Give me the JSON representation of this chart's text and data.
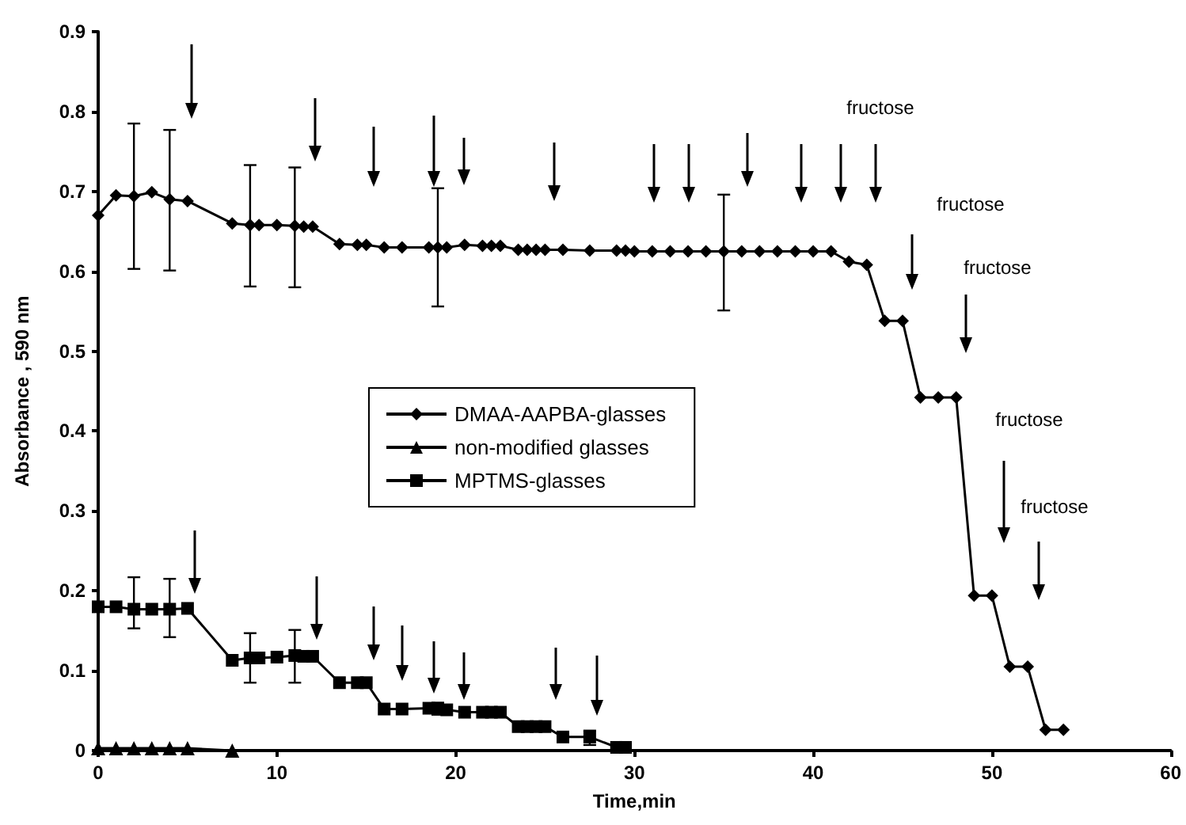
{
  "chart_data": {
    "type": "line",
    "xlabel": "Time,min",
    "ylabel": "Absorbance , 590 nm",
    "xlim": [
      0,
      60
    ],
    "xticks": [
      0,
      10,
      20,
      30,
      40,
      50,
      60
    ],
    "ylim": [
      0,
      0.9
    ],
    "yticks": [
      0,
      0.1,
      0.2,
      0.3,
      0.4,
      0.5,
      0.6,
      0.7,
      0.8,
      0.9
    ],
    "grid": false,
    "legend": "center",
    "line_style": "solid",
    "series": [
      {
        "name": "DMAA-AAPBA-glasses",
        "color": "#000000",
        "marker": "diamond",
        "x": [
          0,
          1,
          2,
          3,
          4,
          5,
          7.5,
          8.5,
          9,
          10,
          11,
          11.5,
          12,
          13.5,
          14.5,
          15,
          16,
          17,
          18.5,
          19,
          19.5,
          20.5,
          21.5,
          22,
          22.5,
          23.5,
          24,
          24.5,
          25,
          26,
          27.5,
          29,
          29.5,
          30,
          31,
          32,
          33,
          34,
          35,
          36,
          37,
          38,
          39,
          40,
          41,
          42,
          43,
          44,
          45,
          46,
          47,
          48,
          49,
          50,
          51,
          52,
          53,
          54
        ],
        "values": [
          0.67,
          0.695,
          0.694,
          0.699,
          0.69,
          0.688,
          0.66,
          0.658,
          0.658,
          0.658,
          0.657,
          0.656,
          0.656,
          0.634,
          0.633,
          0.633,
          0.63,
          0.63,
          0.63,
          0.63,
          0.63,
          0.633,
          0.632,
          0.632,
          0.632,
          0.627,
          0.627,
          0.627,
          0.627,
          0.627,
          0.626,
          0.626,
          0.626,
          0.625,
          0.625,
          0.625,
          0.625,
          0.625,
          0.625,
          0.625,
          0.625,
          0.625,
          0.625,
          0.625,
          0.625,
          0.612,
          0.608,
          0.538,
          0.538,
          0.442,
          0.442,
          0.442,
          0.194,
          0.194,
          0.105,
          0.105,
          0.026,
          0.026
        ],
        "errors": [
          null,
          null,
          [
            0.603,
            0.785
          ],
          null,
          [
            0.601,
            0.777
          ],
          null,
          null,
          [
            0.581,
            0.733
          ],
          null,
          null,
          [
            0.58,
            0.73
          ],
          null,
          null,
          null,
          null,
          null,
          null,
          null,
          null,
          [
            0.556,
            0.704
          ],
          null,
          null,
          null,
          null,
          null,
          null,
          null,
          null,
          null,
          null,
          null,
          null,
          null,
          null,
          null,
          null,
          null,
          null,
          [
            0.551,
            0.696
          ],
          null,
          null,
          null,
          null,
          null,
          null,
          null,
          null,
          null,
          null,
          null,
          null,
          null,
          null,
          null,
          null,
          null,
          null,
          null
        ]
      },
      {
        "name": "non-modified glasses",
        "color": "#000000",
        "marker": "triangle",
        "x": [
          0,
          1,
          2,
          3,
          4,
          5,
          7.5
        ],
        "values": [
          0.003,
          0.003,
          0.003,
          0.003,
          0.003,
          0.003,
          0
        ]
      },
      {
        "name": "MPTMS-glasses",
        "color": "#000000",
        "marker": "square",
        "x": [
          0,
          1,
          2,
          3,
          4,
          5,
          7.5,
          8.5,
          9,
          10,
          11,
          11.5,
          12,
          13.5,
          14.5,
          15,
          16,
          17,
          18.5,
          19,
          19.5,
          20.5,
          21.5,
          22,
          22.5,
          23.5,
          24,
          24.5,
          25,
          26,
          27.5,
          29,
          29.5
        ],
        "values": [
          0.18,
          0.18,
          0.177,
          0.177,
          0.177,
          0.178,
          0.113,
          0.116,
          0.116,
          0.117,
          0.119,
          0.118,
          0.118,
          0.085,
          0.085,
          0.085,
          0.052,
          0.052,
          0.053,
          0.052,
          0.051,
          0.048,
          0.048,
          0.048,
          0.048,
          0.03,
          0.03,
          0.03,
          0.03,
          0.017,
          0.017,
          0.004,
          0.004
        ],
        "errors": [
          null,
          null,
          [
            0.153,
            0.217
          ],
          null,
          [
            0.142,
            0.215
          ],
          null,
          null,
          [
            0.085,
            0.147
          ],
          null,
          null,
          [
            0.085,
            0.151
          ],
          null,
          null,
          null,
          null,
          null,
          null,
          null,
          null,
          [
            0.045,
            0.06
          ],
          null,
          null,
          null,
          null,
          null,
          null,
          null,
          null,
          null,
          null,
          [
            0.007,
            0.025
          ],
          null,
          null
        ]
      }
    ],
    "annotations": [
      "fructose",
      "fructose",
      "fructose",
      "fructose",
      "fructose"
    ]
  }
}
